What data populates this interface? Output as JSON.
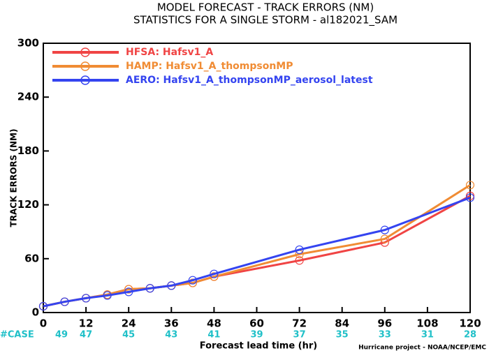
{
  "chart_data": {
    "type": "line",
    "title": "MODEL FORECAST - TRACK ERRORS (NM)",
    "subtitle": "STATISTICS FOR A SINGLE STORM - al182021_SAM",
    "x_label": "Forecast lead time (hr)",
    "y_label": "TRACK ERRORS (NM)",
    "footer": "Hurricane project - NOAA/NCEP/EMC",
    "case_label": "#CASE",
    "cases": [
      49,
      47,
      45,
      43,
      41,
      39,
      37,
      35,
      33,
      31,
      28
    ],
    "x": [
      0,
      6,
      12,
      18,
      24,
      30,
      36,
      42,
      48,
      72,
      96,
      120
    ],
    "series": [
      {
        "name": "HFSA: Hafsv1_A",
        "color": "#f04444",
        "values": [
          7,
          12,
          16,
          20,
          26,
          27,
          30,
          33,
          40,
          58,
          78,
          130
        ]
      },
      {
        "name": "HAMP: Hafsv1_A_thompsonMP",
        "color": "#f08c34",
        "values": [
          7,
          12,
          16,
          20,
          26,
          27,
          30,
          33,
          40,
          65,
          82,
          142
        ]
      },
      {
        "name": "AERO: Hafsv1_A_thompsonMP_aerosol_latest",
        "color": "#3444f0",
        "values": [
          7,
          12,
          16,
          19,
          23,
          27,
          30,
          36,
          43,
          70,
          92,
          128
        ]
      }
    ],
    "xlim": [
      0,
      120
    ],
    "xticks": [
      0,
      12,
      24,
      36,
      48,
      60,
      72,
      84,
      96,
      108,
      120
    ],
    "ylim": [
      0,
      300
    ],
    "yticks": [
      0,
      60,
      120,
      180,
      240,
      300
    ]
  }
}
